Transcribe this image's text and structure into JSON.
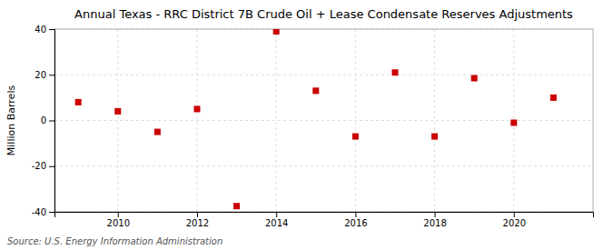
{
  "chart_data": {
    "type": "scatter",
    "title": "Annual Texas - RRC District 7B Crude Oil + Lease Condensate Reserves Adjustments",
    "ylabel": "Million Barrels",
    "source": "Source: U.S. Energy Information Administration",
    "x": [
      2009,
      2010,
      2011,
      2012,
      2013,
      2014,
      2015,
      2016,
      2017,
      2018,
      2019,
      2020,
      2021
    ],
    "values": [
      8.0,
      4.0,
      -5.0,
      5.0,
      -37.5,
      39.0,
      13.0,
      -7.0,
      21.0,
      -7.0,
      18.5,
      -1.0,
      10.0
    ],
    "color": "#cc0000",
    "marker": "square",
    "xlim": [
      2008.4,
      2022.0
    ],
    "ylim": [
      -40,
      40
    ],
    "xticks": [
      2010,
      2012,
      2014,
      2016,
      2018,
      2020
    ],
    "yticks": [
      -40,
      -20,
      0,
      20,
      40
    ],
    "grid": true
  }
}
